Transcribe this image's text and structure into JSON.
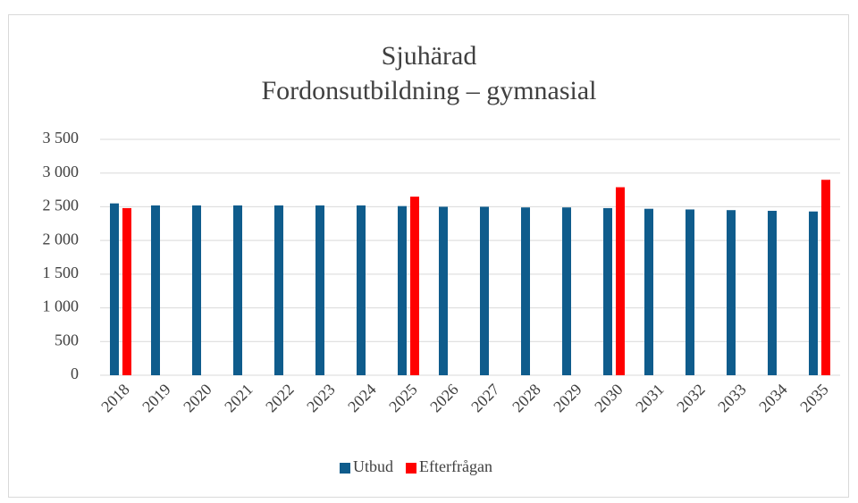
{
  "chart_data": {
    "type": "bar",
    "title": "Sjuhärad",
    "subtitle": "Fordonsutbildning – gymnasial",
    "categories": [
      "2018",
      "2019",
      "2020",
      "2021",
      "2022",
      "2023",
      "2024",
      "2025",
      "2026",
      "2027",
      "2028",
      "2029",
      "2030",
      "2031",
      "2032",
      "2033",
      "2034",
      "2035"
    ],
    "series": [
      {
        "name": "Utbud",
        "color": "#0f5c8c",
        "values": [
          2550,
          2520,
          2520,
          2520,
          2520,
          2520,
          2520,
          2510,
          2500,
          2500,
          2490,
          2490,
          2480,
          2470,
          2460,
          2450,
          2440,
          2430
        ]
      },
      {
        "name": "Efterfrågan",
        "color": "#ff0000",
        "values": [
          2480,
          null,
          null,
          null,
          null,
          null,
          null,
          2650,
          null,
          null,
          null,
          null,
          2790,
          null,
          null,
          null,
          null,
          2900
        ]
      }
    ],
    "ylim": [
      0,
      3500
    ],
    "yticks": [
      0,
      500,
      {
        "value": 1000,
        "label": "1 000"
      },
      {
        "value": 1500,
        "label": "1 500"
      },
      {
        "value": 2000,
        "label": "2 000"
      },
      {
        "value": 2500,
        "label": "2 500"
      },
      {
        "value": 3000,
        "label": "3 000"
      },
      {
        "value": 3500,
        "label": "3 500"
      }
    ],
    "grid": true,
    "legend": "bottom"
  }
}
